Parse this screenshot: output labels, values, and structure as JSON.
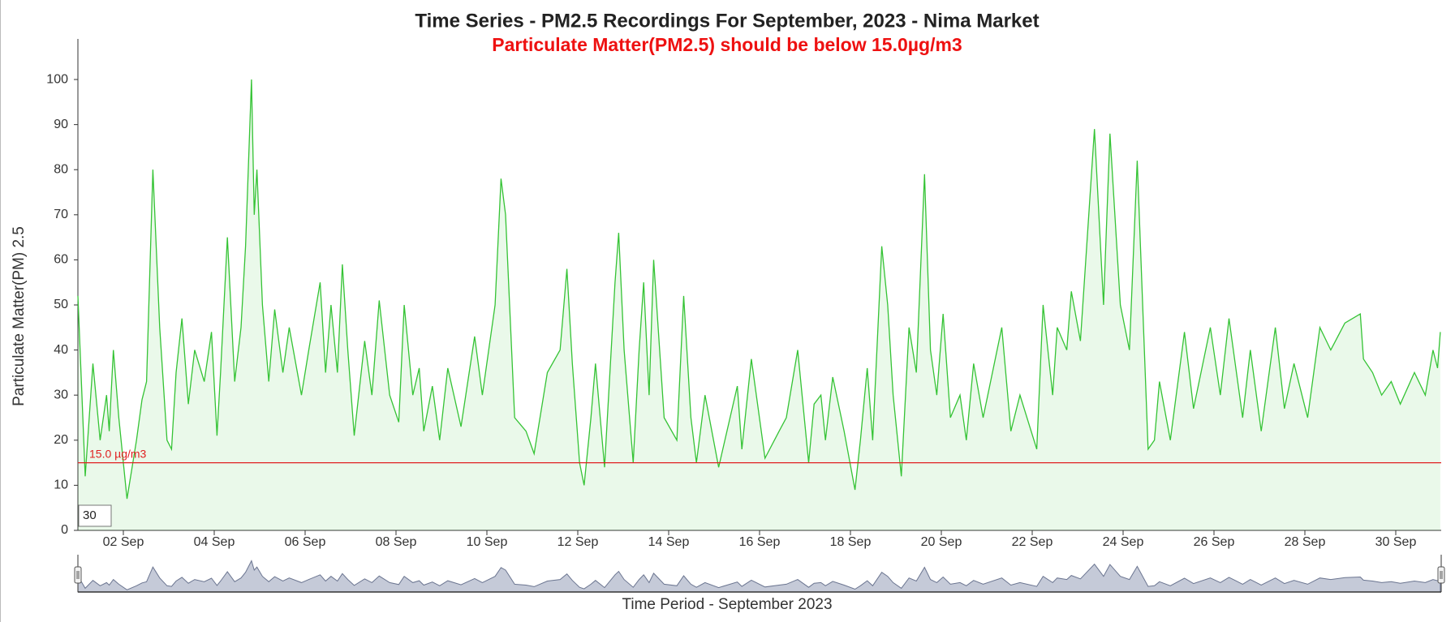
{
  "chart_data": {
    "type": "area",
    "title": "Time Series - PM2.5 Recordings For September, 2023 - Nima Market",
    "subtitle": "Particulate Matter(PM2.5) should be below 15.0µg/m3",
    "x_label": "Time Period - September 2023",
    "y_label": "Particulate Matter(PM) 2.5",
    "color": "#35c335",
    "threshold": {
      "value": 15,
      "label": "15.0 µg/m3",
      "color": "#e02020"
    },
    "range_input": "30",
    "xlim": [
      1,
      31
    ],
    "ylim": [
      0,
      109
    ],
    "yticks": [
      0,
      10,
      20,
      30,
      40,
      50,
      60,
      70,
      80,
      90,
      100
    ],
    "xticks": [
      {
        "value": 2,
        "label": "02 Sep"
      },
      {
        "value": 4,
        "label": "04 Sep"
      },
      {
        "value": 6,
        "label": "06 Sep"
      },
      {
        "value": 8,
        "label": "08 Sep"
      },
      {
        "value": 10,
        "label": "10 Sep"
      },
      {
        "value": 12,
        "label": "12 Sep"
      },
      {
        "value": 14,
        "label": "14 Sep"
      },
      {
        "value": 16,
        "label": "16 Sep"
      },
      {
        "value": 18,
        "label": "18 Sep"
      },
      {
        "value": 20,
        "label": "20 Sep"
      },
      {
        "value": 22,
        "label": "22 Sep"
      },
      {
        "value": 24,
        "label": "24 Sep"
      },
      {
        "value": 26,
        "label": "26 Sep"
      },
      {
        "value": 28,
        "label": "28 Sep"
      },
      {
        "value": 30,
        "label": "30 Sep"
      }
    ],
    "grid": false,
    "x": [
      1.0,
      1.16,
      1.33,
      1.49,
      1.63,
      1.69,
      1.78,
      1.9,
      2.08,
      2.29,
      2.41,
      2.51,
      2.65,
      2.8,
      2.96,
      3.06,
      3.16,
      3.29,
      3.43,
      3.57,
      3.78,
      3.94,
      4.06,
      4.14,
      4.29,
      4.45,
      4.59,
      4.69,
      4.82,
      4.88,
      4.94,
      5.06,
      5.2,
      5.33,
      5.51,
      5.65,
      5.92,
      6.08,
      6.33,
      6.45,
      6.57,
      6.71,
      6.82,
      6.94,
      7.08,
      7.31,
      7.47,
      7.63,
      7.86,
      8.06,
      8.18,
      8.37,
      8.51,
      8.61,
      8.8,
      8.96,
      9.14,
      9.43,
      9.73,
      9.9,
      10.18,
      10.31,
      10.41,
      10.61,
      10.86,
      11.04,
      11.33,
      11.61,
      11.76,
      11.88,
      12.04,
      12.14,
      12.29,
      12.39,
      12.59,
      12.82,
      12.9,
      13.02,
      13.22,
      13.35,
      13.45,
      13.57,
      13.67,
      13.9,
      14.18,
      14.33,
      14.49,
      14.61,
      14.8,
      15.1,
      15.51,
      15.61,
      15.82,
      16.12,
      16.43,
      16.59,
      16.84,
      17.08,
      17.2,
      17.35,
      17.45,
      17.61,
      17.86,
      18.1,
      18.22,
      18.37,
      18.49,
      18.69,
      18.82,
      18.94,
      19.12,
      19.29,
      19.45,
      19.63,
      19.76,
      19.9,
      20.04,
      20.2,
      20.41,
      20.55,
      20.71,
      20.92,
      21.33,
      21.53,
      21.73,
      22.1,
      22.24,
      22.45,
      22.55,
      22.76,
      22.86,
      23.06,
      23.37,
      23.57,
      23.71,
      23.94,
      24.14,
      24.31,
      24.55,
      24.69,
      24.8,
      25.04,
      25.35,
      25.55,
      25.92,
      26.14,
      26.33,
      26.63,
      26.8,
      27.04,
      27.35,
      27.55,
      27.76,
      28.06,
      28.33,
      28.57,
      28.88,
      29.22,
      29.29,
      29.49,
      29.69,
      29.9,
      30.1,
      30.41,
      30.65,
      30.82,
      30.92,
      30.98
    ],
    "values": [
      52,
      12,
      37,
      20,
      30,
      22,
      40,
      25,
      7,
      20,
      29,
      33,
      80,
      45,
      20,
      18,
      35,
      47,
      28,
      40,
      33,
      44,
      21,
      35,
      65,
      33,
      45,
      63,
      100,
      70,
      80,
      50,
      33,
      49,
      35,
      45,
      30,
      40,
      55,
      35,
      50,
      35,
      59,
      40,
      21,
      42,
      30,
      51,
      30,
      24,
      50,
      30,
      36,
      22,
      32,
      20,
      36,
      23,
      43,
      30,
      50,
      78,
      70,
      25,
      22,
      17,
      35,
      40,
      58,
      37,
      15,
      10,
      25,
      37,
      14,
      55,
      66,
      40,
      15,
      40,
      55,
      30,
      60,
      25,
      20,
      52,
      25,
      15,
      30,
      14,
      32,
      18,
      38,
      16,
      22,
      25,
      40,
      15,
      28,
      30,
      20,
      34,
      22,
      9,
      20,
      36,
      20,
      63,
      50,
      30,
      12,
      45,
      35,
      79,
      40,
      30,
      48,
      25,
      30,
      20,
      37,
      25,
      45,
      22,
      30,
      18,
      50,
      30,
      45,
      40,
      53,
      42,
      89,
      50,
      88,
      50,
      40,
      82,
      18,
      20,
      33,
      20,
      44,
      27,
      45,
      30,
      47,
      25,
      40,
      22,
      45,
      27,
      37,
      25,
      45,
      40,
      46,
      48,
      38,
      35,
      30,
      33,
      28,
      35,
      30,
      40,
      36,
      44
    ]
  }
}
